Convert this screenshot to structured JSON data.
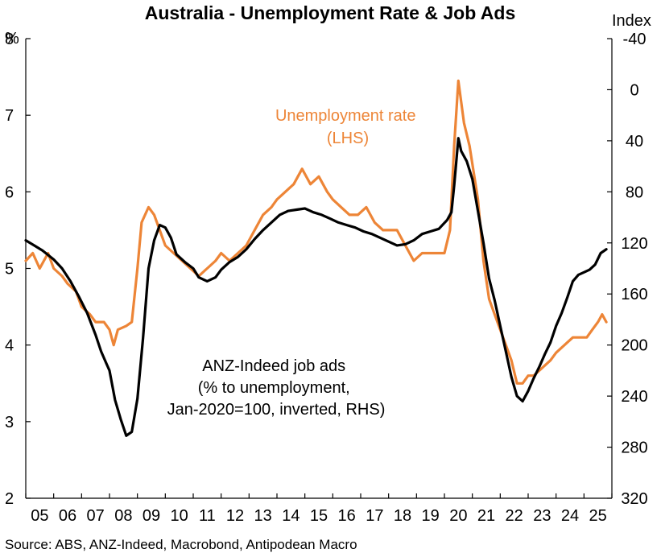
{
  "chart_data": {
    "type": "line",
    "title": "Australia - Unemployment Rate & Job Ads",
    "left_axis": {
      "unit": "%",
      "range": [
        2,
        8
      ],
      "ticks": [
        "2",
        "3",
        "4",
        "5",
        "6",
        "7",
        "8"
      ]
    },
    "right_axis": {
      "unit": "Index",
      "range": [
        320,
        -40
      ],
      "inverted": true,
      "ticks": [
        "-40",
        "0",
        "40",
        "80",
        "120",
        "160",
        "200",
        "240",
        "280",
        "320"
      ]
    },
    "x_axis": {
      "range": [
        2005.0,
        2026.0
      ],
      "ticks": [
        "05",
        "06",
        "07",
        "08",
        "09",
        "10",
        "11",
        "12",
        "13",
        "14",
        "15",
        "16",
        "17",
        "18",
        "19",
        "20",
        "21",
        "22",
        "23",
        "24",
        "25"
      ]
    },
    "grid": false,
    "annotations": {
      "unemployment": [
        "Unemployment rate",
        "(LHS)"
      ],
      "jobads": [
        "ANZ-Indeed job ads",
        "(% to unemployment,",
        "Jan-2020=100, inverted, RHS)"
      ]
    },
    "source": "Source: ABS, ANZ-Indeed, Macrobond, Antipodean Macro",
    "series": [
      {
        "axis": "left",
        "color": "#ED8537",
        "points": [
          [
            2005.0,
            5.1
          ],
          [
            2005.25,
            5.2
          ],
          [
            2005.5,
            5.0
          ],
          [
            2005.8,
            5.2
          ],
          [
            2006.0,
            5.0
          ],
          [
            2006.3,
            4.9
          ],
          [
            2006.5,
            4.8
          ],
          [
            2006.8,
            4.7
          ],
          [
            2007.0,
            4.5
          ],
          [
            2007.3,
            4.4
          ],
          [
            2007.5,
            4.3
          ],
          [
            2007.8,
            4.3
          ],
          [
            2008.0,
            4.2
          ],
          [
            2008.15,
            4.0
          ],
          [
            2008.3,
            4.2
          ],
          [
            2008.6,
            4.25
          ],
          [
            2008.8,
            4.3
          ],
          [
            2009.0,
            5.0
          ],
          [
            2009.15,
            5.6
          ],
          [
            2009.4,
            5.8
          ],
          [
            2009.6,
            5.7
          ],
          [
            2009.8,
            5.5
          ],
          [
            2010.0,
            5.3
          ],
          [
            2010.3,
            5.2
          ],
          [
            2010.6,
            5.1
          ],
          [
            2010.9,
            5.0
          ],
          [
            2011.2,
            4.9
          ],
          [
            2011.5,
            5.0
          ],
          [
            2011.8,
            5.1
          ],
          [
            2012.0,
            5.2
          ],
          [
            2012.3,
            5.1
          ],
          [
            2012.6,
            5.2
          ],
          [
            2012.9,
            5.3
          ],
          [
            2013.2,
            5.5
          ],
          [
            2013.5,
            5.7
          ],
          [
            2013.8,
            5.8
          ],
          [
            2014.0,
            5.9
          ],
          [
            2014.3,
            6.0
          ],
          [
            2014.6,
            6.1
          ],
          [
            2014.9,
            6.3
          ],
          [
            2015.2,
            6.1
          ],
          [
            2015.5,
            6.2
          ],
          [
            2015.8,
            6.0
          ],
          [
            2016.0,
            5.9
          ],
          [
            2016.3,
            5.8
          ],
          [
            2016.6,
            5.7
          ],
          [
            2016.9,
            5.7
          ],
          [
            2017.2,
            5.8
          ],
          [
            2017.5,
            5.6
          ],
          [
            2017.8,
            5.5
          ],
          [
            2018.0,
            5.5
          ],
          [
            2018.3,
            5.5
          ],
          [
            2018.6,
            5.3
          ],
          [
            2018.9,
            5.1
          ],
          [
            2019.2,
            5.2
          ],
          [
            2019.5,
            5.2
          ],
          [
            2019.8,
            5.2
          ],
          [
            2020.0,
            5.2
          ],
          [
            2020.2,
            5.5
          ],
          [
            2020.35,
            6.6
          ],
          [
            2020.5,
            7.45
          ],
          [
            2020.7,
            6.9
          ],
          [
            2020.9,
            6.6
          ],
          [
            2021.2,
            5.9
          ],
          [
            2021.4,
            5.1
          ],
          [
            2021.6,
            4.6
          ],
          [
            2021.8,
            4.4
          ],
          [
            2022.0,
            4.2
          ],
          [
            2022.2,
            4.0
          ],
          [
            2022.4,
            3.8
          ],
          [
            2022.6,
            3.5
          ],
          [
            2022.8,
            3.5
          ],
          [
            2023.0,
            3.6
          ],
          [
            2023.2,
            3.6
          ],
          [
            2023.5,
            3.7
          ],
          [
            2023.8,
            3.8
          ],
          [
            2024.0,
            3.9
          ],
          [
            2024.3,
            4.0
          ],
          [
            2024.6,
            4.1
          ],
          [
            2024.9,
            4.1
          ],
          [
            2025.1,
            4.1
          ],
          [
            2025.3,
            4.2
          ],
          [
            2025.5,
            4.3
          ],
          [
            2025.65,
            4.4
          ],
          [
            2025.8,
            4.3
          ]
        ]
      },
      {
        "axis": "right",
        "color": "#000000",
        "points": [
          [
            2005.0,
            118
          ],
          [
            2005.3,
            122
          ],
          [
            2005.6,
            126
          ],
          [
            2006.0,
            133
          ],
          [
            2006.3,
            140
          ],
          [
            2006.6,
            150
          ],
          [
            2006.9,
            162
          ],
          [
            2007.2,
            175
          ],
          [
            2007.5,
            192
          ],
          [
            2007.7,
            205
          ],
          [
            2007.9,
            215
          ],
          [
            2008.0,
            220
          ],
          [
            2008.2,
            243
          ],
          [
            2008.4,
            258
          ],
          [
            2008.6,
            271
          ],
          [
            2008.8,
            268
          ],
          [
            2009.0,
            242
          ],
          [
            2009.2,
            195
          ],
          [
            2009.4,
            140
          ],
          [
            2009.6,
            118
          ],
          [
            2009.8,
            106
          ],
          [
            2010.0,
            108
          ],
          [
            2010.2,
            116
          ],
          [
            2010.4,
            129
          ],
          [
            2010.7,
            135
          ],
          [
            2011.0,
            140
          ],
          [
            2011.2,
            147
          ],
          [
            2011.5,
            150
          ],
          [
            2011.8,
            147
          ],
          [
            2012.0,
            141
          ],
          [
            2012.3,
            135
          ],
          [
            2012.6,
            131
          ],
          [
            2012.9,
            125
          ],
          [
            2013.2,
            117
          ],
          [
            2013.5,
            110
          ],
          [
            2013.8,
            104
          ],
          [
            2014.1,
            98
          ],
          [
            2014.4,
            95
          ],
          [
            2014.7,
            94
          ],
          [
            2015.0,
            93
          ],
          [
            2015.3,
            96
          ],
          [
            2015.6,
            98
          ],
          [
            2015.9,
            101
          ],
          [
            2016.2,
            104
          ],
          [
            2016.5,
            106
          ],
          [
            2016.8,
            108
          ],
          [
            2017.1,
            111
          ],
          [
            2017.4,
            113
          ],
          [
            2017.7,
            116
          ],
          [
            2018.0,
            119
          ],
          [
            2018.3,
            122
          ],
          [
            2018.6,
            121
          ],
          [
            2018.9,
            118
          ],
          [
            2019.2,
            113
          ],
          [
            2019.5,
            111
          ],
          [
            2019.8,
            109
          ],
          [
            2020.1,
            102
          ],
          [
            2020.25,
            96
          ],
          [
            2020.35,
            75
          ],
          [
            2020.5,
            38
          ],
          [
            2020.6,
            48
          ],
          [
            2020.8,
            56
          ],
          [
            2021.0,
            70
          ],
          [
            2021.2,
            95
          ],
          [
            2021.4,
            120
          ],
          [
            2021.6,
            148
          ],
          [
            2021.8,
            165
          ],
          [
            2022.0,
            185
          ],
          [
            2022.2,
            205
          ],
          [
            2022.4,
            225
          ],
          [
            2022.6,
            240
          ],
          [
            2022.8,
            244
          ],
          [
            2023.0,
            236
          ],
          [
            2023.2,
            226
          ],
          [
            2023.4,
            217
          ],
          [
            2023.6,
            207
          ],
          [
            2023.8,
            198
          ],
          [
            2024.0,
            185
          ],
          [
            2024.2,
            175
          ],
          [
            2024.4,
            163
          ],
          [
            2024.6,
            150
          ],
          [
            2024.8,
            145
          ],
          [
            2025.0,
            143
          ],
          [
            2025.2,
            141
          ],
          [
            2025.4,
            137
          ],
          [
            2025.6,
            128
          ],
          [
            2025.8,
            125
          ]
        ]
      }
    ]
  }
}
